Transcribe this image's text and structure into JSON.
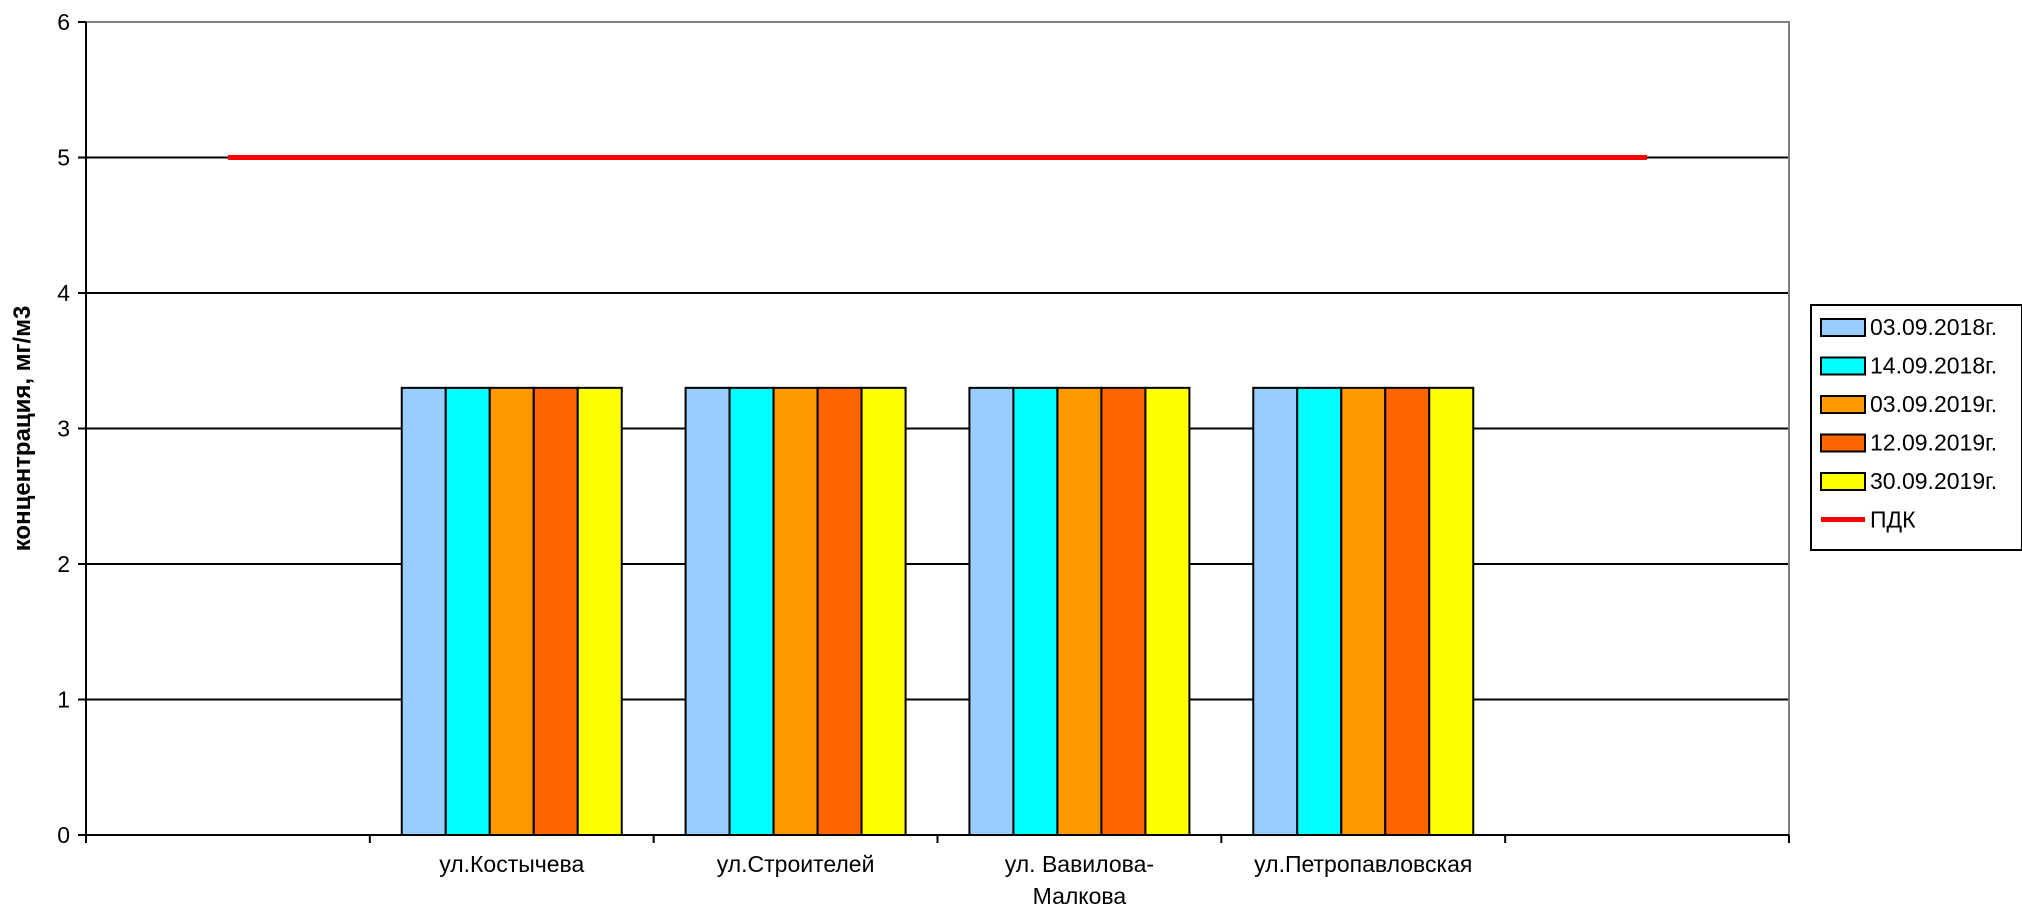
{
  "chart_data": {
    "type": "bar",
    "ylabel": "концентрация, мг/м3",
    "xlabel": "",
    "title": "",
    "ylim": [
      0,
      6
    ],
    "yticks": [
      "0",
      "1",
      "2",
      "3",
      "4",
      "5",
      "6"
    ],
    "categories": [
      [],
      [
        "ул.Костычева"
      ],
      [
        "ул.Строителей"
      ],
      [
        "ул. Вавилова-",
        "Малкова"
      ],
      [
        "ул.Петропавловская"
      ],
      []
    ],
    "series": [
      {
        "name": "03.09.2018г.",
        "color": "#99CCFF",
        "values": [
          null,
          3.3,
          3.3,
          3.3,
          3.3,
          null
        ]
      },
      {
        "name": "14.09.2018г.",
        "color": "#00FFFF",
        "values": [
          null,
          3.3,
          3.3,
          3.3,
          3.3,
          null
        ]
      },
      {
        "name": "03.09.2019г.",
        "color": "#FF9900",
        "values": [
          null,
          3.3,
          3.3,
          3.3,
          3.3,
          null
        ]
      },
      {
        "name": "12.09.2019г.",
        "color": "#FF6600",
        "values": [
          null,
          3.3,
          3.3,
          3.3,
          3.3,
          null
        ]
      },
      {
        "name": "30.09.2019г.",
        "color": "#FFFF00",
        "values": [
          null,
          3.3,
          3.3,
          3.3,
          3.3,
          null
        ]
      }
    ],
    "reference_line": {
      "name": "ПДК",
      "color": "#FF0000",
      "value": 5
    },
    "grid": true,
    "legend_position": "right"
  }
}
